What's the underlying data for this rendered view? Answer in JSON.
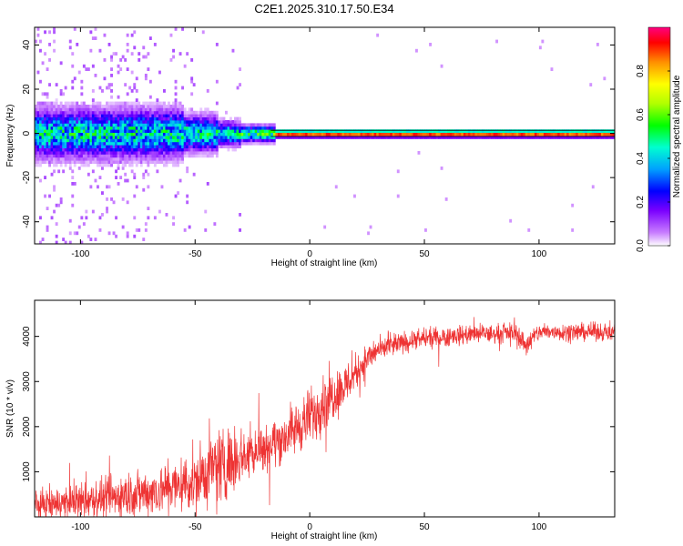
{
  "title": "C2E1.2025.310.17.50.E34",
  "chart_data": [
    {
      "type": "heatmap",
      "name": "spectrogram",
      "xlabel": "Height of straight line (km)",
      "ylabel": "Frequency (Hz)",
      "xlim": [
        -120,
        133
      ],
      "ylim": [
        -50,
        48
      ],
      "xticks": [
        -100,
        -50,
        0,
        50,
        100
      ],
      "yticks": [
        -40,
        -20,
        0,
        20,
        40
      ],
      "colorbar": {
        "label": "Normalized spectral amplitude",
        "range": [
          0,
          1
        ],
        "ticks": [
          0.0,
          0.2,
          0.4,
          0.6,
          0.8
        ],
        "colors": [
          "#ffffff",
          "#c87dff",
          "#7b00ff",
          "#0000ff",
          "#00a0ff",
          "#00ffd0",
          "#00ff00",
          "#b0ff00",
          "#ffff00",
          "#ff9000",
          "#ff0000",
          "#ff0080"
        ]
      },
      "features": {
        "carrier_freq_hz": 0,
        "strong_signal_from_km": -15,
        "noisy_region_until_km": -30
      }
    },
    {
      "type": "line",
      "name": "snr",
      "xlabel": "Height of straight line (km)",
      "ylabel": "SNR (10 * v/v)",
      "xlim": [
        -120,
        133
      ],
      "ylim": [
        0,
        4800
      ],
      "xticks": [
        -100,
        -50,
        0,
        50,
        100
      ],
      "yticks": [
        1000,
        2000,
        3000,
        4000
      ],
      "color": "#ee3333",
      "series": [
        {
          "name": "SNR",
          "x": [
            -120,
            -110,
            -100,
            -90,
            -80,
            -70,
            -60,
            -50,
            -45,
            -40,
            -35,
            -30,
            -25,
            -20,
            -15,
            -10,
            -5,
            0,
            5,
            10,
            15,
            20,
            25,
            30,
            40,
            50,
            60,
            70,
            80,
            90,
            94,
            100,
            110,
            120,
            133
          ],
          "y": [
            250,
            300,
            350,
            400,
            480,
            550,
            650,
            800,
            950,
            1100,
            1250,
            1350,
            1450,
            1550,
            1650,
            1800,
            2000,
            2200,
            2500,
            2700,
            2900,
            3200,
            3500,
            3700,
            3850,
            3950,
            4000,
            4050,
            4050,
            4100,
            3800,
            4100,
            4100,
            4100,
            4100
          ],
          "noise": [
            250,
            280,
            300,
            330,
            380,
            400,
            450,
            500,
            600,
            750,
            550,
            450,
            420,
            420,
            400,
            420,
            450,
            480,
            500,
            450,
            380,
            300,
            250,
            200,
            180,
            170,
            170,
            160,
            160,
            160,
            200,
            150,
            150,
            150,
            150
          ]
        }
      ]
    }
  ]
}
